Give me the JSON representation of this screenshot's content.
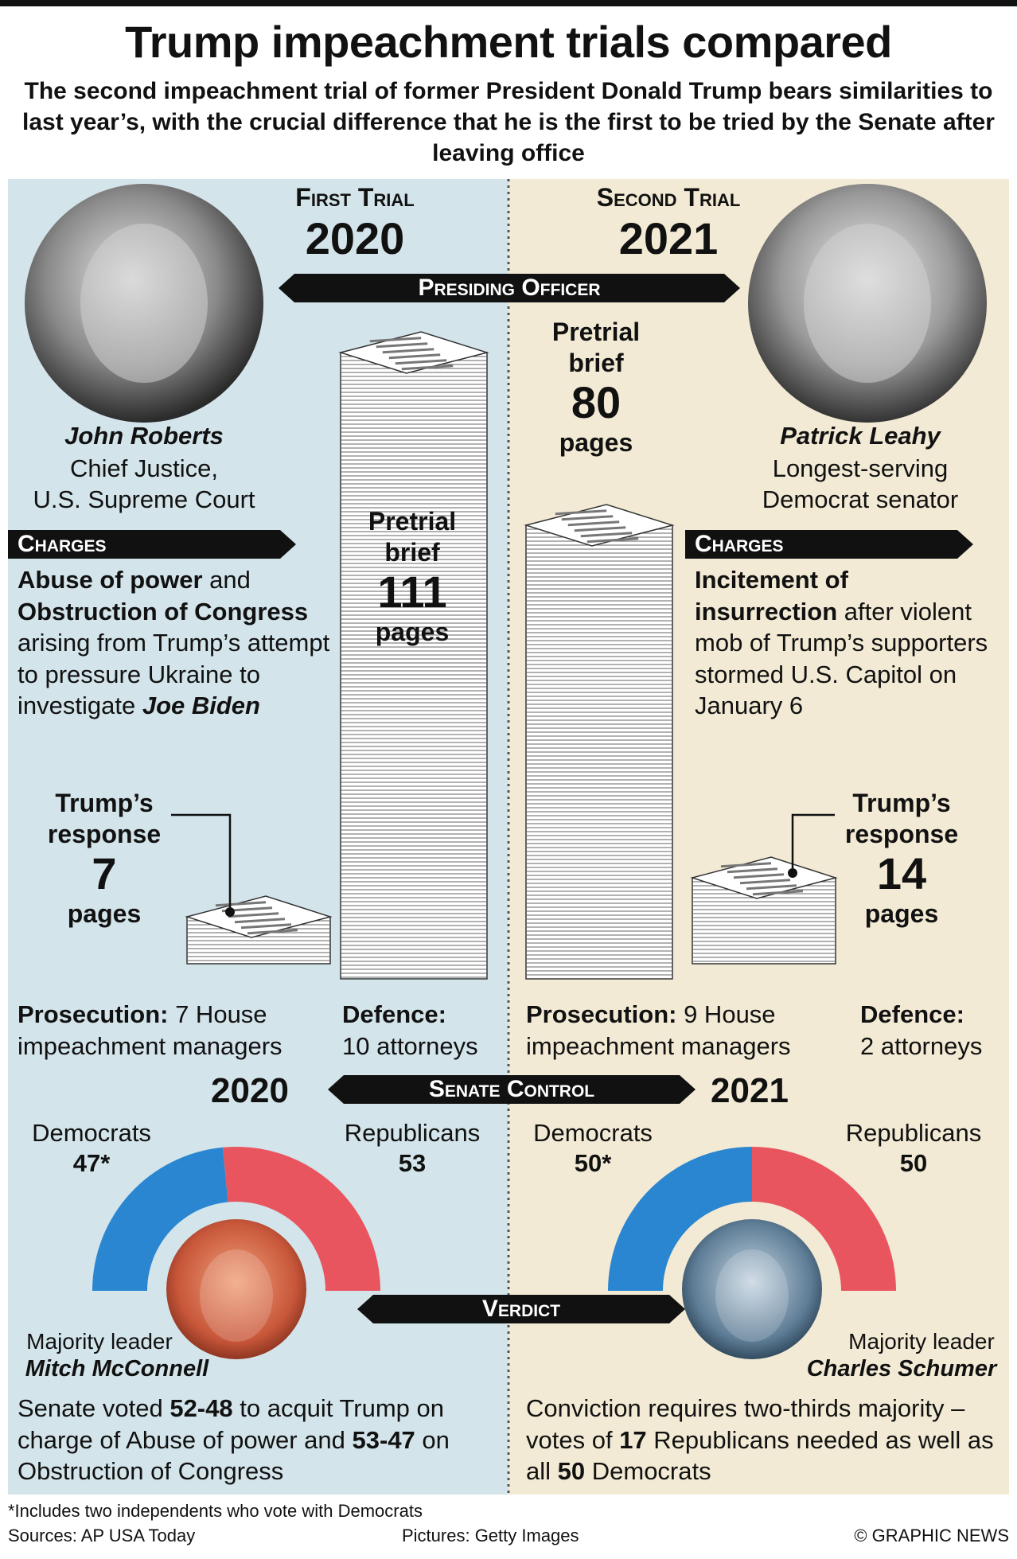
{
  "header": {
    "title": "Trump impeachment trials compared",
    "subtitle": "The second impeachment trial of former President Donald Trump bears similarities to last year’s, with the crucial difference that he is the first to be tried by the Senate after leaving office"
  },
  "banners": {
    "presiding": "Presiding Officer",
    "senate": "Senate Control",
    "verdict": "Verdict"
  },
  "trials": [
    {
      "heading": "First Trial",
      "year": "2020",
      "officer": {
        "name": "John Roberts",
        "role": [
          "Chief Justice,",
          "U.S. Supreme Court"
        ]
      },
      "charges_label": "Charges",
      "charges": [
        "Abuse of power",
        " and ",
        "Obstruction of Congress",
        " arising from Trump’s attempt to pressure Ukraine to investigate ",
        "Joe Biden"
      ],
      "pretrial": {
        "label": "Pretrial brief",
        "pages": 111,
        "unit": "pages"
      },
      "response": {
        "label": "Trump’s response",
        "pages": 7,
        "unit": "pages"
      },
      "prosecution": [
        "Prosecution:",
        " 7 House impeachment managers"
      ],
      "defence": [
        "Defence:",
        "10 attorneys"
      ],
      "senate": {
        "year": "2020",
        "parties": [
          {
            "name": "Democrats",
            "seats": 47,
            "label": "47*",
            "color": "#2a86d1"
          },
          {
            "name": "Republicans",
            "seats": 53,
            "color": "#e9555f"
          }
        ]
      },
      "leader": {
        "role": "Majority leader",
        "name": "Mitch McConnell"
      },
      "verdict": [
        "Senate voted ",
        "52-48",
        " to acquit Trump on charge of Abuse of power and ",
        "53-47",
        " on Obstruction of Congress"
      ]
    },
    {
      "heading": "Second Trial",
      "year": "2021",
      "officer": {
        "name": "Patrick Leahy",
        "role": [
          "Longest-serving",
          "Democrat senator"
        ]
      },
      "charges_label": "Charges",
      "charges": [
        "Incitement of insurrection",
        " after violent mob of Trump’s supporters stormed U.S. Capitol on January 6"
      ],
      "pretrial": {
        "label": "Pretrial brief",
        "pages": 80,
        "unit": "pages"
      },
      "response": {
        "label": "Trump’s response",
        "pages": 14,
        "unit": "pages"
      },
      "prosecution": [
        "Prosecution:",
        " 9 House impeachment managers"
      ],
      "defence": [
        "Defence:",
        "2 attorneys"
      ],
      "senate": {
        "year": "2021",
        "parties": [
          {
            "name": "Democrats",
            "seats": 50,
            "label": "50*",
            "color": "#2a86d1"
          },
          {
            "name": "Republicans",
            "seats": 50,
            "color": "#e9555f"
          }
        ]
      },
      "leader": {
        "role": "Majority leader",
        "name": "Charles Schumer"
      },
      "verdict": [
        "Conviction requires two-thirds majority – votes of ",
        "17",
        " Republicans needed as well as all ",
        "50",
        " Democrats"
      ]
    }
  ],
  "footer": {
    "note": "*Includes two independents who vote with Democrats",
    "sources": "Sources: AP USA Today",
    "pictures": "Pictures: Getty Images",
    "credit": "© GRAPHIC NEWS"
  }
}
